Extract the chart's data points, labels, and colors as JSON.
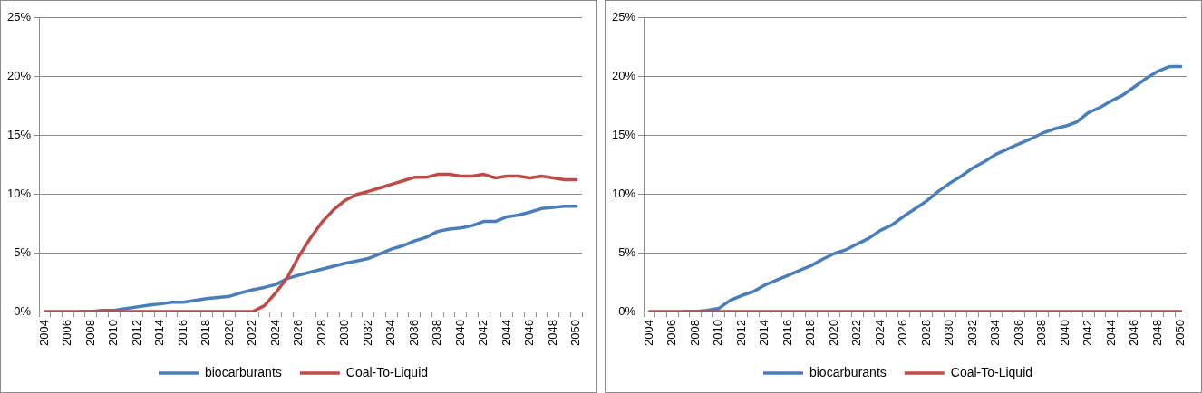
{
  "chart_data": [
    {
      "type": "line",
      "categories": [
        "2004",
        null,
        "2006",
        null,
        "2008",
        null,
        "2010",
        null,
        "2012",
        null,
        "2014",
        null,
        "2016",
        null,
        "2018",
        null,
        "2020",
        null,
        "2022",
        null,
        "2024",
        null,
        "2026",
        null,
        "2028",
        null,
        "2030",
        null,
        "2032",
        null,
        "2034",
        null,
        "2036",
        null,
        "2038",
        null,
        "2040",
        null,
        "2042",
        null,
        "2044",
        null,
        "2046",
        null,
        "2048",
        null,
        "2050"
      ],
      "series": [
        {
          "name": "biocarburants",
          "color": "#4a7ebb",
          "values": [
            null,
            null,
            null,
            0,
            0,
            0.1,
            0.1,
            0.25,
            0.4,
            0.55,
            0.65,
            0.8,
            0.8,
            0.95,
            1.1,
            1.2,
            1.3,
            1.6,
            1.85,
            2.05,
            2.3,
            2.8,
            3.1,
            3.35,
            3.6,
            3.85,
            4.1,
            4.3,
            4.5,
            4.9,
            5.3,
            5.6,
            6.0,
            6.3,
            6.8,
            7.0,
            7.1,
            7.3,
            7.65,
            7.65,
            8.05,
            8.2,
            8.45,
            8.75,
            8.85,
            8.95,
            8.95
          ]
        },
        {
          "name": "Coal-To-Liquid",
          "color": "#be4b48",
          "values": [
            0,
            0,
            0,
            0,
            0,
            0,
            0,
            0,
            0,
            0,
            0,
            0,
            0,
            0,
            0,
            0,
            0,
            0,
            0,
            0.5,
            1.6,
            2.9,
            4.7,
            6.25,
            7.6,
            8.65,
            9.45,
            9.95,
            10.2,
            10.5,
            10.8,
            11.1,
            11.4,
            11.4,
            11.65,
            11.65,
            11.5,
            11.5,
            11.65,
            11.35,
            11.5,
            11.5,
            11.35,
            11.5,
            11.35,
            11.2,
            11.2
          ]
        }
      ],
      "ylim": [
        0,
        25
      ],
      "yticks": [
        {
          "value": 0,
          "label": "0%"
        },
        {
          "value": 5,
          "label": "5%"
        },
        {
          "value": 10,
          "label": "10%"
        },
        {
          "value": 15,
          "label": "15%"
        },
        {
          "value": 20,
          "label": "20%"
        },
        {
          "value": 25,
          "label": "25%"
        }
      ],
      "grid": "y",
      "legend": "bottom",
      "marker": "none",
      "line_style": "solid"
    },
    {
      "type": "line",
      "categories": [
        "2004",
        null,
        "2006",
        null,
        "2008",
        null,
        "2010",
        null,
        "2012",
        null,
        "2014",
        null,
        "2016",
        null,
        "2018",
        null,
        "2020",
        null,
        "2022",
        null,
        "2024",
        null,
        "2026",
        null,
        "2028",
        null,
        "2030",
        null,
        "2032",
        null,
        "2034",
        null,
        "2036",
        null,
        "2038",
        null,
        "2040",
        null,
        "2042",
        null,
        "2044",
        null,
        "2046",
        null,
        "2048",
        null,
        "2050"
      ],
      "series": [
        {
          "name": "biocarburants",
          "color": "#4a7ebb",
          "values": [
            null,
            null,
            null,
            0,
            0,
            0.1,
            0.27,
            0.96,
            1.37,
            1.7,
            2.26,
            2.67,
            3.08,
            3.5,
            3.9,
            4.45,
            4.93,
            5.24,
            5.75,
            6.23,
            6.9,
            7.36,
            8.08,
            8.73,
            9.4,
            10.2,
            10.9,
            11.5,
            12.2,
            12.74,
            13.36,
            13.8,
            14.25,
            14.66,
            15.14,
            15.5,
            15.75,
            16.1,
            16.9,
            17.33,
            17.9,
            18.4,
            19.1,
            19.8,
            20.4,
            20.8,
            20.8
          ]
        },
        {
          "name": "Coal-To-Liquid",
          "color": "#be4b48",
          "values": [
            0,
            0,
            0,
            0,
            0,
            0,
            0,
            0,
            0,
            0,
            0,
            0,
            0,
            0,
            0,
            0,
            0,
            0,
            0,
            0,
            0,
            0,
            0,
            0,
            0,
            0,
            0,
            0,
            0,
            0,
            0,
            0,
            0,
            0,
            0,
            0,
            0,
            0,
            0,
            0,
            0,
            0,
            0,
            0,
            0,
            0,
            0
          ]
        }
      ],
      "ylim": [
        0,
        25
      ],
      "yticks": [
        {
          "value": 0,
          "label": "0%"
        },
        {
          "value": 5,
          "label": "5%"
        },
        {
          "value": 10,
          "label": "10%"
        },
        {
          "value": 15,
          "label": "15%"
        },
        {
          "value": 20,
          "label": "20%"
        },
        {
          "value": 25,
          "label": "25%"
        }
      ],
      "grid": "y",
      "legend": "bottom",
      "marker": "none",
      "line_style": "solid"
    }
  ]
}
